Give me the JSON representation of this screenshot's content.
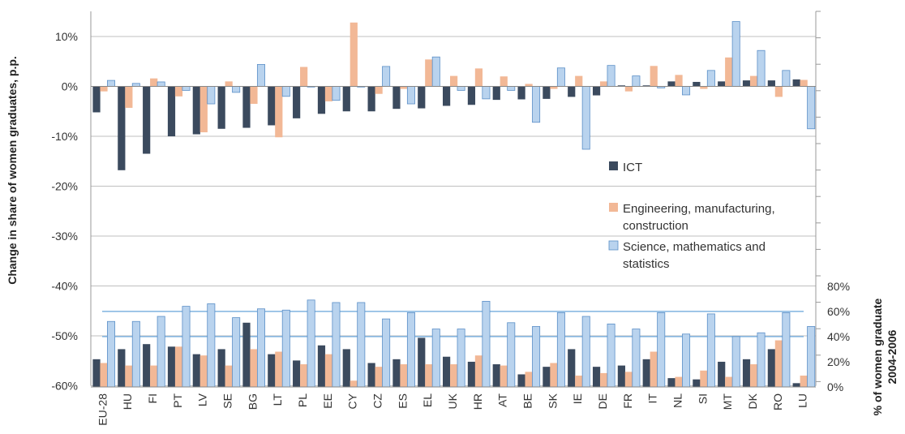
{
  "chart_data": [
    {
      "type": "bar",
      "panel": "change",
      "categories": [
        "EU-28",
        "HU",
        "FI",
        "PT",
        "LV",
        "SE",
        "BG",
        "LT",
        "PL",
        "EE",
        "CY",
        "CZ",
        "ES",
        "EL",
        "UK",
        "HR",
        "AT",
        "BE",
        "SK",
        "IE",
        "DE",
        "FR",
        "IT",
        "NL",
        "SI",
        "MT",
        "DK",
        "RO",
        "LU"
      ],
      "ylabel": "Change in share of women graduates, p.p.",
      "ylim": [
        -60,
        15
      ],
      "yticks": [
        "10%",
        "0%",
        "-10%",
        "-20%",
        "-30%",
        "-40%",
        "-50%",
        "-60%"
      ],
      "series": [
        {
          "name": "ICT",
          "color": "#3b4a5e",
          "values": [
            -5.2,
            -16.8,
            -13.5,
            -10,
            -9.6,
            -8.5,
            -8.3,
            -7.8,
            -6.4,
            -5.5,
            -5,
            -5,
            -4.5,
            -4.4,
            -3.9,
            -3.7,
            -2.7,
            -2.6,
            -2.5,
            -2.1,
            -1.8,
            0.2,
            0.2,
            1,
            0.9,
            1,
            1.2,
            1.2,
            1.4
          ]
        },
        {
          "name": "Engineering, manufacturing, construction",
          "color": "#f2b896",
          "values": [
            -1,
            -4.3,
            1.6,
            -2,
            -9.2,
            1,
            -3.5,
            -10.2,
            3.9,
            -3,
            12.8,
            -1.5,
            -0.5,
            5.4,
            2.1,
            3.6,
            2,
            0.5,
            -0.5,
            2.1,
            1,
            -1,
            4.1,
            2.3,
            -0.5,
            5.8,
            2.1,
            -2.1,
            1.3
          ]
        },
        {
          "name": "Science, mathematics and statistics",
          "color": "#b9d3ee",
          "values": [
            1.2,
            0.6,
            0.9,
            -0.8,
            -3.5,
            -1.2,
            4.4,
            -2,
            0,
            -2.8,
            0,
            4,
            -3.5,
            5.9,
            -0.8,
            -2.5,
            -0.8,
            -7.2,
            3.7,
            -12.6,
            4.2,
            2.1,
            -0.3,
            -1.7,
            3.2,
            13,
            7.2,
            3.2,
            -8.5
          ]
        }
      ]
    },
    {
      "type": "bar",
      "panel": "level",
      "categories": [
        "EU-28",
        "HU",
        "FI",
        "PT",
        "LV",
        "SE",
        "BG",
        "LT",
        "PL",
        "EE",
        "CY",
        "CZ",
        "ES",
        "EL",
        "UK",
        "HR",
        "AT",
        "BE",
        "SK",
        "IE",
        "DE",
        "FR",
        "IT",
        "NL",
        "SI",
        "MT",
        "DK",
        "RO",
        "LU"
      ],
      "ylabel": "% of women graduate 2004-2006",
      "ylim": [
        0,
        80
      ],
      "yticks": [
        "80%",
        "60%",
        "40%",
        "20%",
        "0%"
      ],
      "reference_lines": [
        60,
        40
      ],
      "series": [
        {
          "name": "ICT",
          "color": "#3b4a5e",
          "values": [
            22,
            30,
            34,
            32,
            26,
            30,
            51,
            26,
            21,
            33,
            30,
            19,
            22,
            39,
            24,
            20,
            18,
            10,
            16,
            30,
            16,
            17,
            22,
            7,
            6,
            20,
            22,
            30,
            3
          ]
        },
        {
          "name": "Engineering, manufacturing, construction",
          "color": "#f2b896",
          "values": [
            19,
            17,
            17,
            32,
            25,
            17,
            30,
            28,
            18,
            26,
            5,
            16,
            18,
            18,
            18,
            25,
            17,
            12,
            19,
            9,
            11,
            12,
            28,
            8,
            13,
            8,
            18,
            37,
            9
          ]
        },
        {
          "name": "Science, mathematics and statistics",
          "color": "#b9d3ee",
          "values": [
            52,
            52,
            56,
            64,
            66,
            55,
            62,
            61,
            69,
            67,
            67,
            54,
            59,
            46,
            46,
            68,
            51,
            48,
            59,
            56,
            50,
            46,
            59,
            42,
            58,
            40,
            43,
            59,
            48
          ]
        }
      ]
    }
  ],
  "legend": {
    "items": [
      {
        "label_lines": [
          "ICT"
        ],
        "color": "#3b4a5e"
      },
      {
        "label_lines": [
          "Engineering, manufacturing,",
          "construction"
        ],
        "color": "#f2b896"
      },
      {
        "label_lines": [
          "Science, mathematics and",
          "statistics"
        ],
        "color": "#b9d3ee"
      }
    ]
  },
  "right_axis_title_lines": [
    "% of women graduate",
    "2004-2006"
  ]
}
